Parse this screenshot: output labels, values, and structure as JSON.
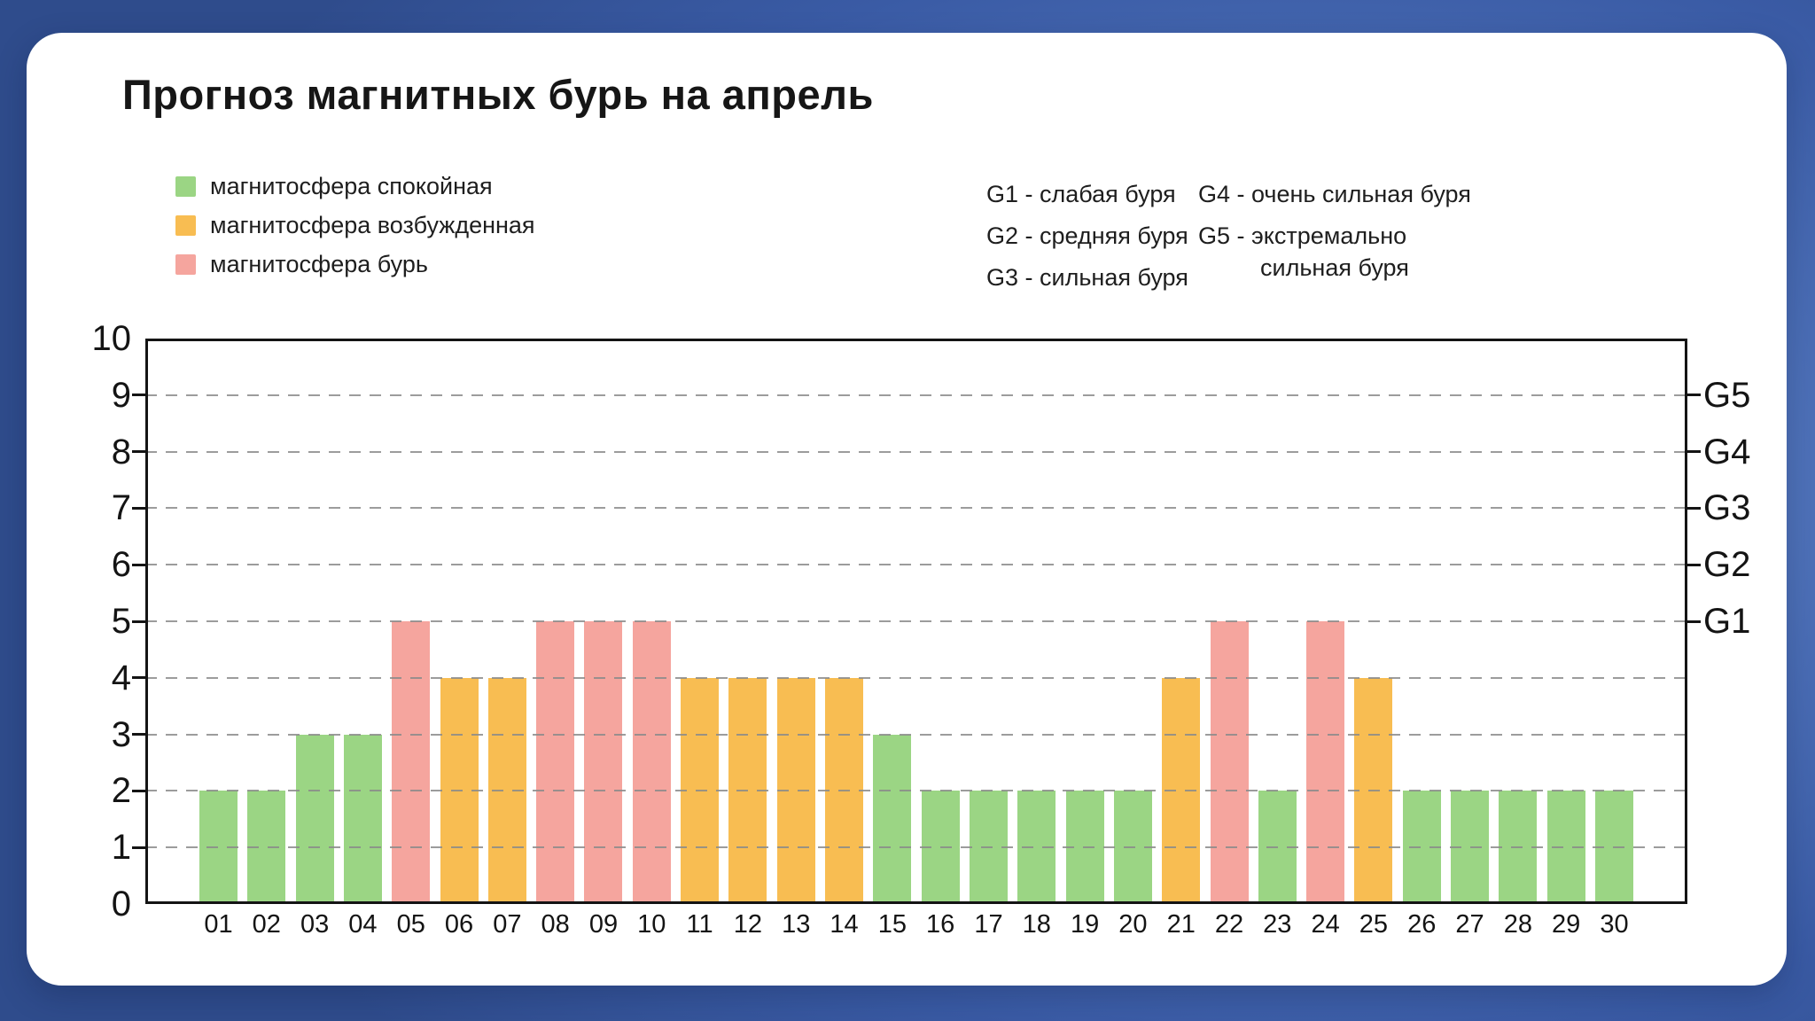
{
  "page": {
    "title": "Прогноз магнитных бурь на апрель"
  },
  "legend": {
    "items": [
      {
        "key": "calm",
        "label": "магнитосфера спокойная",
        "color": "#9bd584"
      },
      {
        "key": "excited",
        "label": "магнитосфера возбужденная",
        "color": "#f8bd52"
      },
      {
        "key": "storm",
        "label": "магнитосфера бурь",
        "color": "#f5a59e"
      }
    ]
  },
  "storm_scale": {
    "col1": [
      "G1 - слабая буря",
      "G2 - средняя буря",
      "G3 - сильная буря"
    ],
    "col2_g4": "G4 - очень сильная буря",
    "col2_g5_line1": "G5 - экстремально",
    "col2_g5_line2": "сильная буря"
  },
  "chart_data": {
    "type": "bar",
    "title": "Прогноз магнитных бурь на апрель",
    "xlabel": "",
    "ylabel": "",
    "categories": [
      "01",
      "02",
      "03",
      "04",
      "05",
      "06",
      "07",
      "08",
      "09",
      "10",
      "11",
      "12",
      "13",
      "14",
      "15",
      "16",
      "17",
      "18",
      "19",
      "20",
      "21",
      "22",
      "23",
      "24",
      "25",
      "26",
      "27",
      "28",
      "29",
      "30"
    ],
    "values": [
      2,
      2,
      3,
      3,
      5,
      4,
      4,
      5,
      5,
      5,
      4,
      4,
      4,
      4,
      3,
      2,
      2,
      2,
      2,
      2,
      4,
      5,
      2,
      5,
      4,
      2,
      2,
      2,
      2,
      2
    ],
    "levels": [
      "calm",
      "calm",
      "calm",
      "calm",
      "storm",
      "excited",
      "excited",
      "storm",
      "storm",
      "storm",
      "excited",
      "excited",
      "excited",
      "excited",
      "calm",
      "calm",
      "calm",
      "calm",
      "calm",
      "calm",
      "excited",
      "storm",
      "calm",
      "storm",
      "excited",
      "calm",
      "calm",
      "calm",
      "calm",
      "calm"
    ],
    "colors": {
      "calm": "#9bd584",
      "excited": "#f8bd52",
      "storm": "#f5a59e"
    },
    "ylim": [
      0,
      10
    ],
    "yticks": [
      0,
      1,
      2,
      3,
      4,
      5,
      6,
      7,
      8,
      9,
      10
    ],
    "grid_at": [
      1,
      2,
      3,
      4,
      5,
      6,
      7,
      8,
      9
    ],
    "grid_style": "dashed",
    "legend_position": "top-left",
    "right_axis_labels": [
      {
        "label": "G5",
        "value": 9
      },
      {
        "label": "G4",
        "value": 8
      },
      {
        "label": "G3",
        "value": 7
      },
      {
        "label": "G2",
        "value": 6
      },
      {
        "label": "G1",
        "value": 5
      }
    ]
  },
  "colors": {
    "background_top_left": "#3b5ca4",
    "background_center": "#6e92d3",
    "background_corner_dark": "#2f4c8c",
    "card": "#ffffff",
    "axis": "#141414",
    "grid": "#8a8a8a",
    "text": "#1e1e1e"
  }
}
